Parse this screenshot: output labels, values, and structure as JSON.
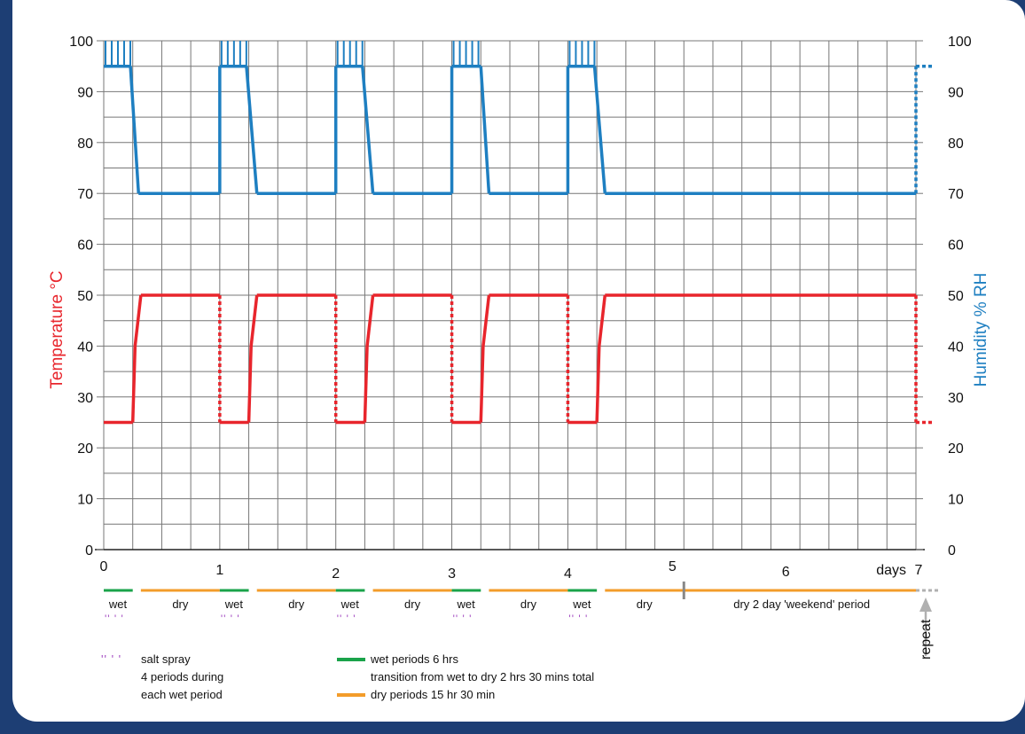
{
  "chart_data": {
    "type": "line",
    "x_unit": "days",
    "xlim": [
      0,
      7
    ],
    "ylim": [
      0,
      100
    ],
    "x_ticks": [
      {
        "value": 0,
        "label": "0"
      },
      {
        "value": 1,
        "label": "1"
      },
      {
        "value": 2,
        "label": "2"
      },
      {
        "value": 3,
        "label": "3"
      },
      {
        "value": 4,
        "label": "4"
      },
      {
        "value": 5,
        "label": "5"
      },
      {
        "value": 6,
        "label": "6"
      },
      {
        "value": 7,
        "label": "7"
      }
    ],
    "xlabel": "days",
    "y_ticks": [
      "0",
      "10",
      "20",
      "30",
      "40",
      "50",
      "60",
      "70",
      "80",
      "90",
      "100"
    ],
    "ylabel_left": "Temperature °C",
    "ylabel_right": "Humidity % RH",
    "colors": {
      "temperature": "#e8252c",
      "humidity": "#1e7fc1",
      "wet": "#1aa34a",
      "dry": "#f39c2a",
      "salt": "#a044c0",
      "repeat": "#b0b0b0",
      "grid": "#777777"
    },
    "series": [
      {
        "axis": "left",
        "color": "#e8252c",
        "points": [
          [
            0,
            25
          ],
          [
            0.25,
            25
          ],
          [
            0.27,
            40
          ],
          [
            0.32,
            50
          ],
          [
            1,
            50
          ],
          [
            1,
            25
          ],
          [
            1.25,
            25
          ],
          [
            1.27,
            40
          ],
          [
            1.32,
            50
          ],
          [
            2,
            50
          ],
          [
            2,
            25
          ],
          [
            2.25,
            25
          ],
          [
            2.27,
            40
          ],
          [
            2.32,
            50
          ],
          [
            3,
            50
          ],
          [
            3,
            25
          ],
          [
            3.25,
            25
          ],
          [
            3.27,
            40
          ],
          [
            3.32,
            50
          ],
          [
            4,
            50
          ],
          [
            4,
            25
          ],
          [
            4.25,
            25
          ],
          [
            4.27,
            40
          ],
          [
            4.32,
            50
          ],
          [
            7,
            50
          ],
          [
            7,
            25
          ],
          [
            7.15,
            25
          ]
        ],
        "dashed_segments": [
          4,
          9,
          14,
          19,
          24,
          25
        ]
      },
      {
        "axis": "right",
        "color": "#1e7fc1",
        "points": [
          [
            0,
            95
          ],
          [
            0.23,
            95
          ],
          [
            0.3,
            70
          ],
          [
            1,
            70
          ],
          [
            1,
            95
          ],
          [
            1.23,
            95
          ],
          [
            1.32,
            70
          ],
          [
            2,
            70
          ],
          [
            2,
            95
          ],
          [
            2.23,
            95
          ],
          [
            2.32,
            70
          ],
          [
            3,
            70
          ],
          [
            3,
            95
          ],
          [
            3.25,
            95
          ],
          [
            3.32,
            70
          ],
          [
            4,
            70
          ],
          [
            4,
            95
          ],
          [
            4.23,
            95
          ],
          [
            4.32,
            70
          ],
          [
            7,
            70
          ],
          [
            7,
            95
          ],
          [
            7.15,
            95
          ]
        ],
        "dashed_segments": [
          19,
          20
        ]
      }
    ],
    "humidity_spikes_start": [
      0,
      1,
      2,
      3,
      4
    ]
  },
  "timeline": {
    "phases": [
      {
        "label": "wet",
        "kind": "wet",
        "start": 0,
        "end": 0.25
      },
      {
        "label": "dry",
        "kind": "dry",
        "start": 0.32,
        "end": 1
      },
      {
        "label": "wet",
        "kind": "wet",
        "start": 1,
        "end": 1.25
      },
      {
        "label": "dry",
        "kind": "dry",
        "start": 1.32,
        "end": 2
      },
      {
        "label": "wet",
        "kind": "wet",
        "start": 2,
        "end": 2.25
      },
      {
        "label": "dry",
        "kind": "dry",
        "start": 2.32,
        "end": 3
      },
      {
        "label": "wet",
        "kind": "wet",
        "start": 3,
        "end": 3.25
      },
      {
        "label": "dry",
        "kind": "dry",
        "start": 3.32,
        "end": 4
      },
      {
        "label": "wet",
        "kind": "wet",
        "start": 4,
        "end": 4.25
      },
      {
        "label": "dry",
        "kind": "dry",
        "start": 4.32,
        "end": 5
      },
      {
        "label": "dry 2 day 'weekend' period",
        "kind": "dry",
        "start": 5,
        "end": 7
      }
    ],
    "salt_spray_days": [
      0,
      1,
      2,
      3,
      4
    ],
    "repeat_label": "repeat"
  },
  "legend": {
    "salt_spray": "salt spray",
    "salt_note_1": "4 periods during",
    "salt_note_2": "each wet period",
    "wet": "wet periods 6 hrs",
    "transition": "transition from wet to dry 2 hrs 30 mins total",
    "dry": "dry periods 15 hr 30 min"
  }
}
